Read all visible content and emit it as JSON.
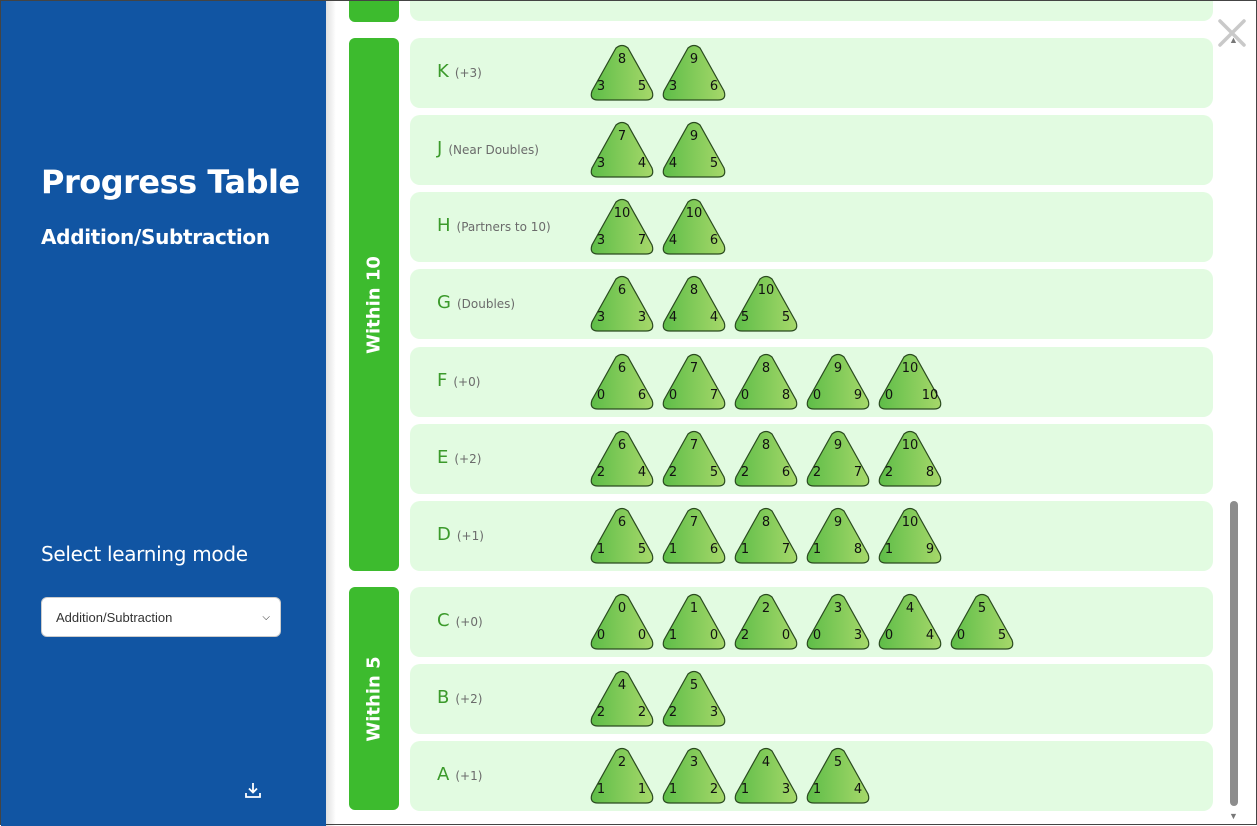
{
  "sidebar": {
    "title": "Progress Table",
    "subtitle": "Addition/Subtraction",
    "mode_label": "Select learning mode",
    "mode_select": {
      "value": "Addition/Subtraction"
    },
    "download_icon": "download-icon"
  },
  "groups": [
    {
      "label": "Within 10"
    },
    {
      "label": "Within 5"
    }
  ],
  "rows": [
    {
      "letter": "K",
      "note": "(+3)",
      "triangles": [
        [
          8,
          3,
          5
        ],
        [
          9,
          3,
          6
        ]
      ]
    },
    {
      "letter": "J",
      "note": "(Near Doubles)",
      "triangles": [
        [
          7,
          3,
          4
        ],
        [
          9,
          4,
          5
        ]
      ]
    },
    {
      "letter": "H",
      "note": "(Partners to 10)",
      "triangles": [
        [
          10,
          3,
          7
        ],
        [
          10,
          4,
          6
        ]
      ]
    },
    {
      "letter": "G",
      "note": "(Doubles)",
      "triangles": [
        [
          6,
          3,
          3
        ],
        [
          8,
          4,
          4
        ],
        [
          10,
          5,
          5
        ]
      ]
    },
    {
      "letter": "F",
      "note": "(+0)",
      "triangles": [
        [
          6,
          0,
          6
        ],
        [
          7,
          0,
          7
        ],
        [
          8,
          0,
          8
        ],
        [
          9,
          0,
          9
        ],
        [
          10,
          0,
          10
        ]
      ]
    },
    {
      "letter": "E",
      "note": "(+2)",
      "triangles": [
        [
          6,
          2,
          4
        ],
        [
          7,
          2,
          5
        ],
        [
          8,
          2,
          6
        ],
        [
          9,
          2,
          7
        ],
        [
          10,
          2,
          8
        ]
      ]
    },
    {
      "letter": "D",
      "note": "(+1)",
      "triangles": [
        [
          6,
          1,
          5
        ],
        [
          7,
          1,
          6
        ],
        [
          8,
          1,
          7
        ],
        [
          9,
          1,
          8
        ],
        [
          10,
          1,
          9
        ]
      ]
    },
    {
      "letter": "C",
      "note": "(+0)",
      "triangles": [
        [
          0,
          0,
          0
        ],
        [
          1,
          1,
          0
        ],
        [
          2,
          2,
          0
        ],
        [
          3,
          0,
          3
        ],
        [
          4,
          0,
          4
        ],
        [
          5,
          0,
          5
        ]
      ]
    },
    {
      "letter": "B",
      "note": "(+2)",
      "triangles": [
        [
          4,
          2,
          2
        ],
        [
          5,
          2,
          3
        ]
      ]
    },
    {
      "letter": "A",
      "note": "(+1)",
      "triangles": [
        [
          2,
          1,
          1
        ],
        [
          3,
          1,
          2
        ],
        [
          4,
          1,
          3
        ],
        [
          5,
          1,
          4
        ]
      ]
    }
  ],
  "close_icon": "close-icon"
}
